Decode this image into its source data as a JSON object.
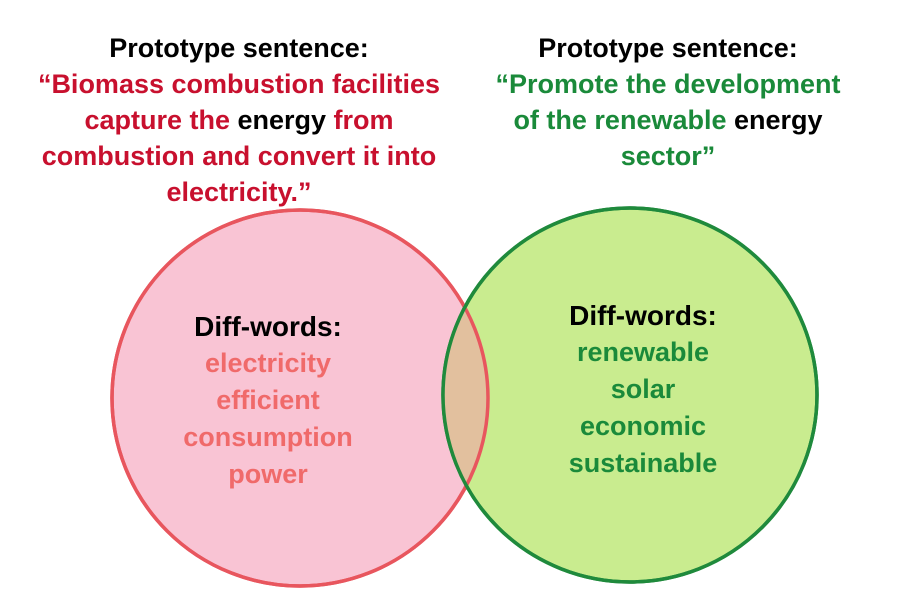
{
  "colors": {
    "left_circle_fill": "#f9c4d4",
    "left_circle_stroke": "#e8565e",
    "right_circle_fill": "#c9ec8f",
    "right_circle_stroke": "#1f8a3c",
    "overlap_fill": "#e2c09e",
    "accent_red": "#c8102e",
    "accent_green": "#1a8a3a",
    "diffword_red": "#f06a6a"
  },
  "left": {
    "heading": "Prototype sentence:",
    "sentence_parts": [
      {
        "text": "“Biomass combustion facilities",
        "color": "red"
      },
      {
        "text": "capture the ",
        "color": "red"
      },
      {
        "text": "energy",
        "color": "black"
      },
      {
        "text": " from",
        "color": "red"
      },
      {
        "text": "combustion and convert it into",
        "color": "red"
      },
      {
        "text": "electricity.”",
        "color": "red"
      }
    ],
    "diff_heading": "Diff-words:",
    "diff_words": [
      "electricity",
      "efficient",
      "consumption",
      "power"
    ]
  },
  "right": {
    "heading": "Prototype sentence:",
    "sentence_parts": [
      {
        "text": "“Promote the development",
        "color": "green"
      },
      {
        "text": "of the renewable ",
        "color": "green"
      },
      {
        "text": "energy",
        "color": "black"
      },
      {
        "text": "sector”",
        "color": "green"
      }
    ],
    "diff_heading": "Diff-words:",
    "diff_words": [
      "renewable",
      "solar",
      "economic",
      "sustainable"
    ]
  }
}
